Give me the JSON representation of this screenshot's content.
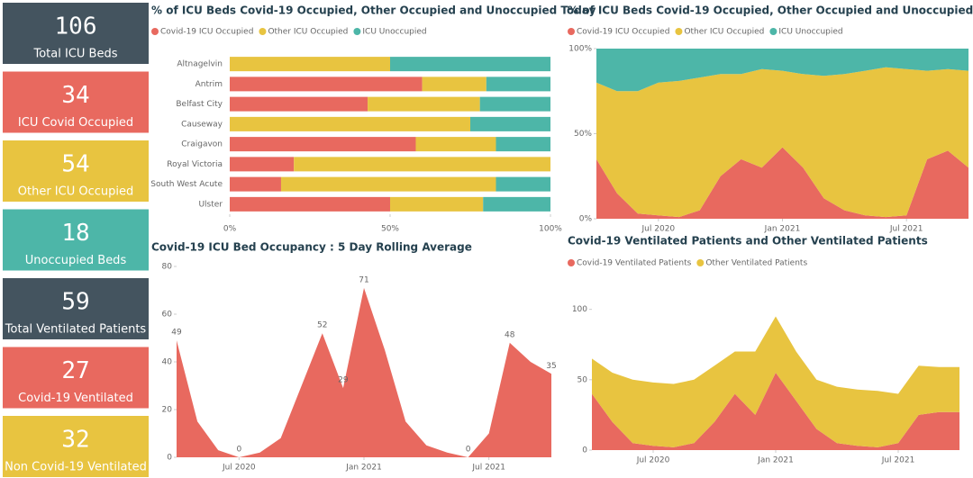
{
  "kpi_cards": [
    {
      "value": 106,
      "label": "Total ICU Beds",
      "color": "#44545f"
    },
    {
      "value": 34,
      "label": "ICU Covid Occupied",
      "color": "#e8695f"
    },
    {
      "value": 54,
      "label": "Other ICU Occupied",
      "color": "#e8c440"
    },
    {
      "value": 18,
      "label": "Unoccupied Beds",
      "color": "#4db6a8"
    },
    {
      "value": 59,
      "label": "Total Ventilated Patients",
      "color": "#44545f"
    },
    {
      "value": 27,
      "label": "Covid-19 Ventilated",
      "color": "#e8695f"
    },
    {
      "value": 32,
      "label": "Non Covid-19 Ventilated",
      "color": "#e8c440"
    }
  ],
  "chart_data": [
    {
      "type": "hbar-stacked",
      "title": "% of ICU Beds Covid-19 Occupied, Other Occupied and Unoccupied Today",
      "categories": [
        "Altnagelvin",
        "Antrim",
        "Belfast City",
        "Causeway",
        "Craigavon",
        "Royal Victoria",
        "South West Acute",
        "Ulster"
      ],
      "series": [
        {
          "name": "Covid-19 ICU Occupied",
          "color": "#e8695f",
          "values": [
            0,
            60,
            43,
            0,
            58,
            20,
            16,
            50
          ]
        },
        {
          "name": "Other ICU Occupied",
          "color": "#e8c440",
          "values": [
            50,
            20,
            35,
            75,
            25,
            80,
            67,
            29
          ]
        },
        {
          "name": "ICU Unoccupied",
          "color": "#4db6a8",
          "values": [
            50,
            20,
            22,
            25,
            17,
            0,
            17,
            21
          ]
        }
      ],
      "xlim": [
        0,
        100
      ],
      "xticks": [
        {
          "value": 0,
          "label": "0%"
        },
        {
          "value": 50,
          "label": "50%"
        },
        {
          "value": 100,
          "label": "100%"
        }
      ],
      "legend": "top-left"
    },
    {
      "type": "area-stacked",
      "title": "% of ICU Beds Covid-19 Occupied, Other Occupied and Unoccupied",
      "x": [
        "2020-04",
        "2020-05",
        "2020-06",
        "2020-07",
        "2020-08",
        "2020-09",
        "2020-10",
        "2020-11",
        "2020-12",
        "2021-01",
        "2021-02",
        "2021-03",
        "2021-04",
        "2021-05",
        "2021-06",
        "2021-07",
        "2021-08",
        "2021-09",
        "2021-10"
      ],
      "series": [
        {
          "name": "Covid-19 ICU Occupied",
          "color": "#e8695f",
          "values": [
            35,
            15,
            3,
            2,
            1,
            5,
            25,
            35,
            30,
            42,
            30,
            12,
            5,
            2,
            1,
            2,
            35,
            40,
            30
          ]
        },
        {
          "name": "Other ICU Occupied",
          "color": "#e8c440",
          "values": [
            45,
            60,
            72,
            78,
            80,
            78,
            60,
            50,
            58,
            45,
            55,
            72,
            80,
            85,
            88,
            86,
            52,
            48,
            57
          ]
        },
        {
          "name": "ICU Unoccupied",
          "color": "#4db6a8",
          "values": [
            20,
            25,
            25,
            20,
            19,
            17,
            15,
            15,
            12,
            13,
            15,
            16,
            15,
            13,
            11,
            12,
            13,
            12,
            13
          ]
        }
      ],
      "xlim": [
        "2020-04",
        "2021-10"
      ],
      "xticks": [
        {
          "value": "2020-07",
          "label": "Jul 2020"
        },
        {
          "value": "2021-01",
          "label": "Jan 2021"
        },
        {
          "value": "2021-07",
          "label": "Jul 2021"
        }
      ],
      "ylim": [
        0,
        100
      ],
      "yticks": [
        {
          "value": 0,
          "label": "0%"
        },
        {
          "value": 50,
          "label": "50%"
        },
        {
          "value": 100,
          "label": "100%"
        }
      ],
      "legend": "top-left"
    },
    {
      "type": "area",
      "title": "Covid-19 ICU Bed Occupancy : 5 Day Rolling Average",
      "x": [
        "2020-04",
        "2020-05",
        "2020-06",
        "2020-07",
        "2020-08",
        "2020-09",
        "2020-10",
        "2020-11",
        "2020-12",
        "2021-01",
        "2021-02",
        "2021-03",
        "2021-04",
        "2021-05",
        "2021-06",
        "2021-07",
        "2021-08",
        "2021-09",
        "2021-10"
      ],
      "values": [
        49,
        15,
        3,
        0,
        2,
        8,
        30,
        52,
        29,
        71,
        45,
        15,
        5,
        2,
        0,
        10,
        48,
        40,
        35
      ],
      "value_labels": [
        "49",
        null,
        null,
        "0",
        null,
        null,
        null,
        "52",
        "29",
        "71",
        null,
        null,
        null,
        null,
        "0",
        null,
        "48",
        null,
        "35"
      ],
      "color": "#e8695f",
      "xlim": [
        "2020-04",
        "2021-10"
      ],
      "xticks": [
        {
          "value": "2020-07",
          "label": "Jul 2020"
        },
        {
          "value": "2021-01",
          "label": "Jan 2021"
        },
        {
          "value": "2021-07",
          "label": "Jul 2021"
        }
      ],
      "ylim": [
        0,
        80
      ],
      "yticks": [
        0,
        20,
        40,
        60,
        80
      ]
    },
    {
      "type": "area-stacked",
      "title": "Covid-19 Ventilated Patients and Other Ventilated Patients",
      "x": [
        "2020-04",
        "2020-05",
        "2020-06",
        "2020-07",
        "2020-08",
        "2020-09",
        "2020-10",
        "2020-11",
        "2020-12",
        "2021-01",
        "2021-02",
        "2021-03",
        "2021-04",
        "2021-05",
        "2021-06",
        "2021-07",
        "2021-08",
        "2021-09",
        "2021-10"
      ],
      "series": [
        {
          "name": "Covid-19 Ventilated Patients",
          "color": "#e8695f",
          "values": [
            40,
            20,
            5,
            3,
            2,
            5,
            20,
            40,
            25,
            55,
            35,
            15,
            5,
            3,
            2,
            5,
            25,
            27,
            27
          ]
        },
        {
          "name": "Other Ventilated Patients",
          "color": "#e8c440",
          "values": [
            25,
            35,
            45,
            45,
            45,
            45,
            40,
            30,
            45,
            40,
            35,
            35,
            40,
            40,
            40,
            35,
            35,
            32,
            32
          ]
        }
      ],
      "xlim": [
        "2020-04",
        "2021-10"
      ],
      "xticks": [
        {
          "value": "2020-07",
          "label": "Jul 2020"
        },
        {
          "value": "2021-01",
          "label": "Jan 2021"
        },
        {
          "value": "2021-07",
          "label": "Jul 2021"
        }
      ],
      "ylim": [
        0,
        110
      ],
      "yticks": [
        0,
        50,
        100
      ],
      "legend": "top-left"
    }
  ]
}
